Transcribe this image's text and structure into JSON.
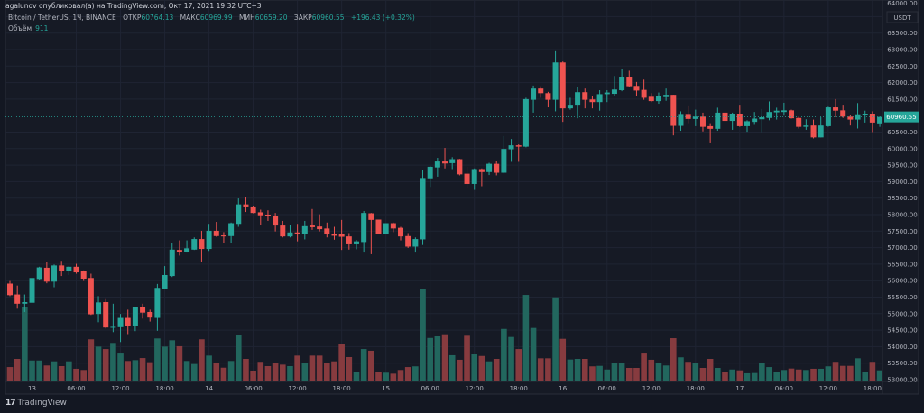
{
  "header": {
    "published": "agalunov опубликовал(а) на TradingView.com, Окт 17, 2021 19:32 UTC+3",
    "symbol": "Bitcoin / TetherUS, 1Ч, BINANCE",
    "open_label": "ОТКР",
    "open": "60764.13",
    "high_label": "МАКС",
    "high": "60969.99",
    "low_label": "МИН",
    "low": "60659.20",
    "close_label": "ЗАКР",
    "close": "60960.55",
    "change": "+196.43 (+0.32%)",
    "volume_label": "Объём",
    "volume": "911"
  },
  "footer": {
    "logo_text": "TradingView"
  },
  "colors": {
    "up": "#26a69a",
    "down": "#ef5350",
    "vol_up": "#22675e",
    "vol_down": "#873b3f",
    "background": "#161a25",
    "grid": "#1f2433"
  },
  "chart_data": {
    "type": "candlestick",
    "title": "Bitcoin / TetherUS, 1Ч, BINANCE",
    "currency": "USDT",
    "ylim": [
      52950,
      64200
    ],
    "grid": true,
    "last_price_label": "60960.55",
    "y_ticks": [
      "64000.00",
      "63500.00",
      "63000.00",
      "62500.00",
      "62000.00",
      "61500.00",
      "60500.00",
      "60000.00",
      "59500.00",
      "59000.00",
      "58500.00",
      "58000.00",
      "57500.00",
      "57000.00",
      "56500.00",
      "56000.00",
      "55500.00",
      "55000.00",
      "54500.00",
      "54000.00",
      "53500.00",
      "53000.00"
    ],
    "x_ticks": [
      {
        "label": "13",
        "time": "2021-10-13 00:00"
      },
      {
        "label": "06:00",
        "time": "2021-10-13 06:00"
      },
      {
        "label": "12:00",
        "time": "2021-10-13 12:00"
      },
      {
        "label": "18:00",
        "time": "2021-10-13 18:00"
      },
      {
        "label": "14",
        "time": "2021-10-14 00:00"
      },
      {
        "label": "06:00",
        "time": "2021-10-14 06:00"
      },
      {
        "label": "12:00",
        "time": "2021-10-14 12:00"
      },
      {
        "label": "18:00",
        "time": "2021-10-14 18:00"
      },
      {
        "label": "15",
        "time": "2021-10-15 00:00"
      },
      {
        "label": "06:00",
        "time": "2021-10-15 06:00"
      },
      {
        "label": "12:00",
        "time": "2021-10-15 12:00"
      },
      {
        "label": "18:00",
        "time": "2021-10-15 18:00"
      },
      {
        "label": "16",
        "time": "2021-10-16 00:00"
      },
      {
        "label": "06:00",
        "time": "2021-10-16 06:00"
      },
      {
        "label": "12:00",
        "time": "2021-10-16 12:00"
      },
      {
        "label": "18:00",
        "time": "2021-10-16 18:00"
      },
      {
        "label": "17",
        "time": "2021-10-17 00:00"
      },
      {
        "label": "06:00",
        "time": "2021-10-17 06:00"
      },
      {
        "label": "12:00",
        "time": "2021-10-17 12:00"
      },
      {
        "label": "18:00",
        "time": "2021-10-17 18:00"
      }
    ],
    "columns": [
      "time",
      "open",
      "high",
      "low",
      "close",
      "volume"
    ],
    "candles": [
      [
        "2021-10-12 21:00",
        55910,
        55990,
        55530,
        55560,
        1180
      ],
      [
        "2021-10-12 22:00",
        55580,
        55850,
        55150,
        55300,
        1850
      ],
      [
        "2021-10-12 23:00",
        55300,
        55580,
        55050,
        55350,
        6070
      ],
      [
        "2021-10-13 00:00",
        55330,
        56110,
        55080,
        56080,
        1720
      ],
      [
        "2021-10-13 01:00",
        56050,
        56420,
        56010,
        56400,
        1720
      ],
      [
        "2021-10-13 02:00",
        56390,
        56560,
        55920,
        55970,
        1310
      ],
      [
        "2021-10-13 03:00",
        55970,
        56490,
        55800,
        56460,
        1650
      ],
      [
        "2021-10-13 04:00",
        56460,
        56600,
        56140,
        56280,
        1260
      ],
      [
        "2021-10-13 05:00",
        56280,
        56440,
        56170,
        56420,
        1650
      ],
      [
        "2021-10-13 06:00",
        56420,
        56510,
        56210,
        56250,
        1040
      ],
      [
        "2021-10-13 07:00",
        56280,
        56310,
        55990,
        56060,
        940
      ],
      [
        "2021-10-13 08:00",
        56080,
        56210,
        54960,
        54980,
        3460
      ],
      [
        "2021-10-13 09:00",
        54990,
        55530,
        54740,
        55340,
        2860
      ],
      [
        "2021-10-13 10:00",
        55350,
        55440,
        54550,
        54580,
        2660
      ],
      [
        "2021-10-13 11:00",
        54580,
        55300,
        54440,
        54600,
        3160
      ],
      [
        "2021-10-13 12:00",
        54590,
        54990,
        54140,
        54870,
        2290
      ],
      [
        "2021-10-13 13:00",
        54870,
        55120,
        54380,
        54620,
        1680
      ],
      [
        "2021-10-13 14:00",
        54620,
        55210,
        54470,
        55210,
        1750
      ],
      [
        "2021-10-13 15:00",
        55210,
        55300,
        54850,
        55030,
        1920
      ],
      [
        "2021-10-13 16:00",
        55050,
        55120,
        54760,
        54880,
        1580
      ],
      [
        "2021-10-13 17:00",
        54870,
        55900,
        54480,
        55780,
        3530
      ],
      [
        "2021-10-13 18:00",
        55760,
        56440,
        55740,
        56170,
        2860
      ],
      [
        "2021-10-13 19:00",
        56140,
        57130,
        56110,
        56940,
        3380
      ],
      [
        "2021-10-13 20:00",
        56930,
        57220,
        56760,
        56880,
        2890
      ],
      [
        "2021-10-13 21:00",
        56870,
        57220,
        56850,
        56980,
        1680
      ],
      [
        "2021-10-13 22:00",
        56940,
        57310,
        56930,
        57260,
        1430
      ],
      [
        "2021-10-13 23:00",
        57260,
        57510,
        56580,
        56960,
        3460
      ],
      [
        "2021-10-14 00:00",
        56960,
        57720,
        56900,
        57510,
        2120
      ],
      [
        "2021-10-14 01:00",
        57510,
        57780,
        57330,
        57350,
        1480
      ],
      [
        "2021-10-14 02:00",
        57370,
        57470,
        57140,
        57340,
        1130
      ],
      [
        "2021-10-14 03:00",
        57350,
        57760,
        57140,
        57740,
        1680
      ],
      [
        "2021-10-14 04:00",
        57720,
        58490,
        57630,
        58310,
        3800
      ],
      [
        "2021-10-14 05:00",
        58310,
        58540,
        58080,
        58220,
        1850
      ],
      [
        "2021-10-14 06:00",
        58220,
        58260,
        58040,
        58050,
        890
      ],
      [
        "2021-10-14 07:00",
        58070,
        58150,
        57690,
        57980,
        1610
      ],
      [
        "2021-10-14 08:00",
        58000,
        58130,
        57810,
        57960,
        1260
      ],
      [
        "2021-10-14 09:00",
        57970,
        58050,
        57490,
        57670,
        1530
      ],
      [
        "2021-10-14 10:00",
        57670,
        57810,
        57310,
        57340,
        1380
      ],
      [
        "2021-10-14 11:00",
        57340,
        57690,
        57310,
        57460,
        1260
      ],
      [
        "2021-10-14 12:00",
        57460,
        57720,
        57190,
        57410,
        2120
      ],
      [
        "2021-10-14 13:00",
        57400,
        57810,
        57250,
        57650,
        1530
      ],
      [
        "2021-10-14 14:00",
        57670,
        58170,
        57540,
        57620,
        2120
      ],
      [
        "2021-10-14 15:00",
        57640,
        58010,
        57490,
        57560,
        2120
      ],
      [
        "2021-10-14 16:00",
        57580,
        57760,
        57310,
        57400,
        1480
      ],
      [
        "2021-10-14 17:00",
        57410,
        57630,
        57240,
        57360,
        1650
      ],
      [
        "2021-10-14 18:00",
        57400,
        57840,
        56930,
        57330,
        3060
      ],
      [
        "2021-10-14 19:00",
        57340,
        57440,
        56940,
        57100,
        2000
      ],
      [
        "2021-10-14 20:00",
        57100,
        57230,
        56950,
        57190,
        780
      ],
      [
        "2021-10-14 21:00",
        57170,
        58110,
        56850,
        58050,
        2660
      ],
      [
        "2021-10-14 22:00",
        58040,
        58050,
        56800,
        57840,
        2520
      ],
      [
        "2021-10-14 23:00",
        57850,
        57850,
        57400,
        57420,
        810
      ],
      [
        "2021-10-15 00:00",
        57420,
        57740,
        57400,
        57740,
        720
      ],
      [
        "2021-10-15 01:00",
        57740,
        57760,
        57470,
        57580,
        640
      ],
      [
        "2021-10-15 02:00",
        57600,
        57630,
        57220,
        57340,
        940
      ],
      [
        "2021-10-15 03:00",
        57350,
        57440,
        56990,
        57030,
        1180
      ],
      [
        "2021-10-15 04:00",
        57030,
        57310,
        56850,
        57260,
        1240
      ],
      [
        "2021-10-15 05:00",
        57250,
        59360,
        57080,
        59110,
        7570
      ],
      [
        "2021-10-15 06:00",
        59100,
        59480,
        58840,
        59450,
        3570
      ],
      [
        "2021-10-15 07:00",
        59430,
        59720,
        59150,
        59610,
        3700
      ],
      [
        "2021-10-15 08:00",
        59610,
        60020,
        59400,
        59550,
        3870
      ],
      [
        "2021-10-15 09:00",
        59560,
        59740,
        59380,
        59680,
        2150
      ],
      [
        "2021-10-15 10:00",
        59680,
        59690,
        59190,
        59220,
        1780
      ],
      [
        "2021-10-15 11:00",
        59240,
        59450,
        58810,
        58930,
        3750
      ],
      [
        "2021-10-15 12:00",
        58930,
        59400,
        58750,
        59380,
        2220
      ],
      [
        "2021-10-15 13:00",
        59380,
        59400,
        58860,
        59290,
        2090
      ],
      [
        "2021-10-15 14:00",
        59290,
        59570,
        59200,
        59540,
        1650
      ],
      [
        "2021-10-15 15:00",
        59540,
        59630,
        59190,
        59270,
        1850
      ],
      [
        "2021-10-15 16:00",
        59270,
        60380,
        59250,
        59990,
        4310
      ],
      [
        "2021-10-15 17:00",
        59980,
        60290,
        59600,
        60100,
        3650
      ],
      [
        "2021-10-15 18:00",
        60100,
        60130,
        59600,
        60060,
        2660
      ],
      [
        "2021-10-15 19:00",
        60060,
        61540,
        60040,
        61500,
        7100
      ],
      [
        "2021-10-15 20:00",
        61480,
        61910,
        61090,
        61820,
        4390
      ],
      [
        "2021-10-15 21:00",
        61820,
        61890,
        61540,
        61680,
        1900
      ],
      [
        "2021-10-15 22:00",
        61680,
        61720,
        61250,
        61480,
        1900
      ],
      [
        "2021-10-15 23:00",
        61480,
        62950,
        61130,
        62610,
        6900
      ],
      [
        "2021-10-16 00:00",
        62610,
        62640,
        60810,
        61220,
        3500
      ],
      [
        "2021-10-16 01:00",
        61220,
        61540,
        61180,
        61330,
        1800
      ],
      [
        "2021-10-16 02:00",
        61330,
        61860,
        60920,
        61710,
        1850
      ],
      [
        "2021-10-16 03:00",
        61710,
        61820,
        61220,
        61480,
        1850
      ],
      [
        "2021-10-16 04:00",
        61490,
        61590,
        61220,
        61410,
        1240
      ],
      [
        "2021-10-16 05:00",
        61410,
        61770,
        61150,
        61650,
        1280
      ],
      [
        "2021-10-16 06:00",
        61650,
        61770,
        61410,
        61700,
        980
      ],
      [
        "2021-10-16 07:00",
        61660,
        62200,
        61590,
        61790,
        1480
      ],
      [
        "2021-10-16 08:00",
        61770,
        62410,
        61740,
        62180,
        1550
      ],
      [
        "2021-10-16 09:00",
        62180,
        62360,
        61860,
        61890,
        1110
      ],
      [
        "2021-10-16 10:00",
        61900,
        62020,
        61590,
        61760,
        1110
      ],
      [
        "2021-10-16 11:00",
        61780,
        62090,
        61480,
        61540,
        2290
      ],
      [
        "2021-10-16 12:00",
        61570,
        61680,
        61410,
        61440,
        1780
      ],
      [
        "2021-10-16 13:00",
        61440,
        61700,
        61360,
        61580,
        1530
      ],
      [
        "2021-10-16 14:00",
        61560,
        61820,
        61450,
        61630,
        1310
      ],
      [
        "2021-10-16 15:00",
        61630,
        61630,
        60400,
        60690,
        3550
      ],
      [
        "2021-10-16 16:00",
        60690,
        61130,
        60540,
        61050,
        1980
      ],
      [
        "2021-10-16 17:00",
        61050,
        61310,
        60770,
        60900,
        1610
      ],
      [
        "2021-10-16 18:00",
        60900,
        61180,
        60680,
        60970,
        1480
      ],
      [
        "2021-10-16 19:00",
        60970,
        61090,
        60520,
        60660,
        1110
      ],
      [
        "2021-10-16 20:00",
        60680,
        60770,
        60160,
        60600,
        1850
      ],
      [
        "2021-10-16 21:00",
        60600,
        61240,
        60540,
        61090,
        1110
      ],
      [
        "2021-10-16 22:00",
        61090,
        61110,
        60810,
        60840,
        740
      ],
      [
        "2021-10-16 23:00",
        60840,
        61090,
        60570,
        61060,
        980
      ],
      [
        "2021-10-17 00:00",
        61060,
        61330,
        60660,
        60680,
        910
      ],
      [
        "2021-10-17 01:00",
        60680,
        60860,
        60510,
        60830,
        670
      ],
      [
        "2021-10-17 02:00",
        60810,
        61110,
        60720,
        60910,
        690
      ],
      [
        "2021-10-17 03:00",
        60890,
        61200,
        60500,
        60950,
        1530
      ],
      [
        "2021-10-17 04:00",
        60930,
        61430,
        60860,
        61110,
        1180
      ],
      [
        "2021-10-17 05:00",
        61100,
        61240,
        60880,
        61150,
        790
      ],
      [
        "2021-10-17 06:00",
        61110,
        61390,
        61000,
        61160,
        940
      ],
      [
        "2021-10-17 07:00",
        61160,
        61180,
        60910,
        60920,
        1060
      ],
      [
        "2021-10-17 08:00",
        60930,
        60970,
        60610,
        60660,
        980
      ],
      [
        "2021-10-17 09:00",
        60660,
        60890,
        60570,
        60700,
        940
      ],
      [
        "2021-10-17 10:00",
        60700,
        60880,
        60310,
        60340,
        1040
      ],
      [
        "2021-10-17 11:00",
        60340,
        60950,
        60340,
        60700,
        1040
      ],
      [
        "2021-10-17 12:00",
        60680,
        61270,
        60660,
        61250,
        1240
      ],
      [
        "2021-10-17 13:00",
        61250,
        61500,
        60950,
        61150,
        1610
      ],
      [
        "2021-10-17 14:00",
        61160,
        61330,
        60930,
        60970,
        1280
      ],
      [
        "2021-10-17 15:00",
        60970,
        61010,
        60700,
        60880,
        1280
      ],
      [
        "2021-10-17 16:00",
        60880,
        61380,
        60610,
        61040,
        1900
      ],
      [
        "2021-10-17 17:00",
        61020,
        61150,
        60790,
        61060,
        790
      ],
      [
        "2021-10-17 18:00",
        61060,
        61130,
        60500,
        60790,
        1610
      ],
      [
        "2021-10-17 19:00",
        60764.13,
        60969.99,
        60659.2,
        60960.55,
        911
      ]
    ]
  }
}
